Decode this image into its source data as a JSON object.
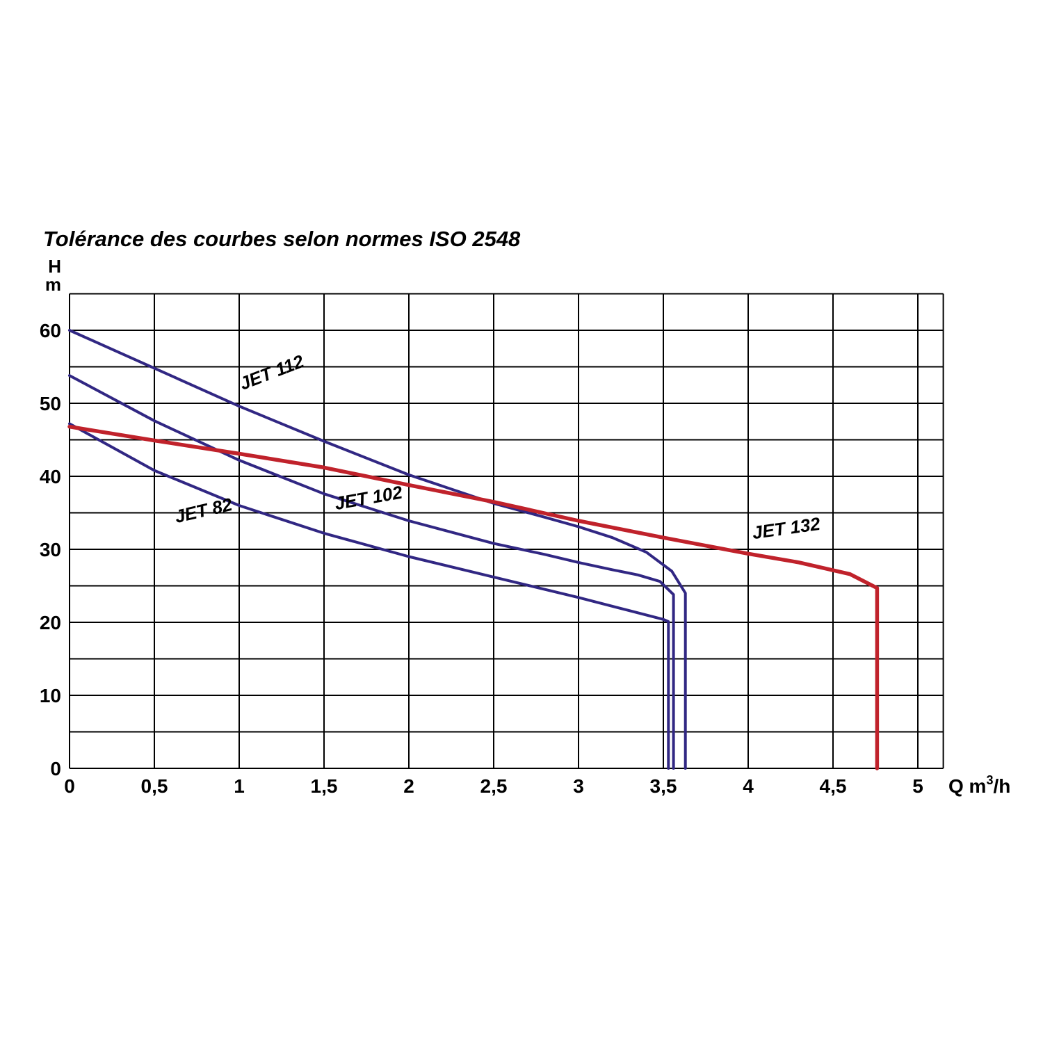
{
  "title": "Tolérance des courbes selon normes ISO 2548",
  "chart_data": {
    "type": "line",
    "title": "Tolérance des courbes selon normes ISO 2548",
    "grid": true,
    "legend": "inline-curve-labels",
    "colors": {
      "navy": "#312783",
      "red": "#c0222b",
      "grid": "#000000",
      "text": "#000000"
    },
    "y_axis": {
      "unit_lines": [
        "H",
        "m"
      ],
      "ticks": [
        60,
        50,
        40,
        30,
        20,
        10,
        0
      ],
      "grid_step": 5,
      "min": 0,
      "max": 65
    },
    "x_axis": {
      "unit": {
        "prefix": "Q m",
        "sup": "3",
        "suffix": "/h"
      },
      "ticks": [
        {
          "v": 0,
          "label": "0"
        },
        {
          "v": 0.5,
          "label": "0,5"
        },
        {
          "v": 1,
          "label": "1"
        },
        {
          "v": 1.5,
          "label": "1,5"
        },
        {
          "v": 2,
          "label": "2"
        },
        {
          "v": 2.5,
          "label": "2,5"
        },
        {
          "v": 3,
          "label": "3"
        },
        {
          "v": 3.5,
          "label": "3,5"
        },
        {
          "v": 4,
          "label": "4"
        },
        {
          "v": 4.5,
          "label": "4,5"
        },
        {
          "v": 5,
          "label": "5"
        }
      ],
      "grid_step": 0.5,
      "min": 0,
      "max": 5.15
    },
    "series": [
      {
        "name": "JET 112",
        "color_role": "navy",
        "points": [
          [
            0,
            60
          ],
          [
            0.5,
            54.8
          ],
          [
            1,
            49.6
          ],
          [
            1.5,
            44.8
          ],
          [
            2,
            40.2
          ],
          [
            2.5,
            36.3
          ],
          [
            2.8,
            34.4
          ],
          [
            3,
            33.1
          ],
          [
            3.2,
            31.6
          ],
          [
            3.4,
            29.6
          ],
          [
            3.55,
            27
          ],
          [
            3.63,
            24
          ],
          [
            3.63,
            0
          ]
        ]
      },
      {
        "name": "JET 102",
        "color_role": "navy",
        "points": [
          [
            0,
            53.8
          ],
          [
            0.5,
            47.6
          ],
          [
            1,
            42.2
          ],
          [
            1.5,
            37.6
          ],
          [
            2,
            33.9
          ],
          [
            2.5,
            30.8
          ],
          [
            2.8,
            29.3
          ],
          [
            3,
            28.2
          ],
          [
            3.2,
            27.2
          ],
          [
            3.35,
            26.5
          ],
          [
            3.48,
            25.6
          ],
          [
            3.56,
            23.8
          ],
          [
            3.56,
            0
          ]
        ]
      },
      {
        "name": "JET 82",
        "color_role": "navy",
        "points": [
          [
            0,
            47.2
          ],
          [
            0.5,
            40.8
          ],
          [
            1,
            36
          ],
          [
            1.5,
            32.2
          ],
          [
            2,
            29
          ],
          [
            2.5,
            26.2
          ],
          [
            3,
            23.4
          ],
          [
            3.3,
            21.6
          ],
          [
            3.5,
            20.4
          ],
          [
            3.53,
            20.1
          ],
          [
            3.53,
            0
          ]
        ]
      },
      {
        "name": "JET 132",
        "color_role": "red",
        "points": [
          [
            0,
            46.8
          ],
          [
            0.5,
            44.9
          ],
          [
            1,
            43.1
          ],
          [
            1.5,
            41.2
          ],
          [
            2,
            38.8
          ],
          [
            2.5,
            36.5
          ],
          [
            3,
            33.9
          ],
          [
            3.5,
            31.6
          ],
          [
            4,
            29.4
          ],
          [
            4.3,
            28.2
          ],
          [
            4.6,
            26.6
          ],
          [
            4.76,
            24.7
          ],
          [
            4.76,
            0
          ]
        ]
      }
    ],
    "curve_labels": [
      {
        "text": "JET 112",
        "x": 1.02,
        "y": 51.8,
        "rot": -21
      },
      {
        "text": "JET 82",
        "x": 0.63,
        "y": 33.6,
        "rot": -13
      },
      {
        "text": "JET 102",
        "x": 1.57,
        "y": 35.4,
        "rot": -10
      },
      {
        "text": "JET 132",
        "x": 4.03,
        "y": 31.4,
        "rot": -8
      }
    ]
  }
}
